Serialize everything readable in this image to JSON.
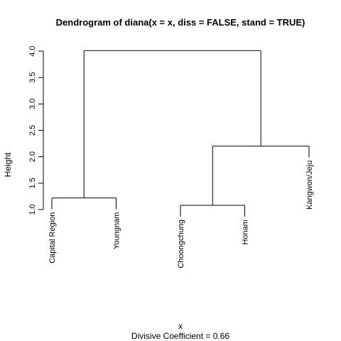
{
  "chart_data": {
    "type": "dendrogram",
    "title": "Dendrogram of  diana(x = x, diss = FALSE, stand = TRUE)",
    "xlabel": "x",
    "ylabel": "Height",
    "sublabel": "Divisive Coefficient =  0.66",
    "ylim": [
      1.0,
      4.0
    ],
    "yticks": [
      "1.0",
      "1.5",
      "2.0",
      "2.5",
      "3.0",
      "3.5",
      "4.0"
    ],
    "leaves": [
      "Capital Region",
      "Youngnam",
      "Choongchung",
      "Honam",
      "Kangwon/Jeju"
    ],
    "leaf_base_height": 1.0,
    "merges": [
      {
        "left": "Capital Region",
        "right": "Youngnam",
        "height": 1.22
      },
      {
        "left": "Choongchung",
        "right": "Honam",
        "height": 1.08
      },
      {
        "left": "Choongchung+Honam",
        "right": "Kangwon/Jeju",
        "height": 2.2
      },
      {
        "left": "Capital Region+Youngnam",
        "right": "Choongchung+Honam+Kangwon/Jeju",
        "height": 4.01
      }
    ]
  }
}
